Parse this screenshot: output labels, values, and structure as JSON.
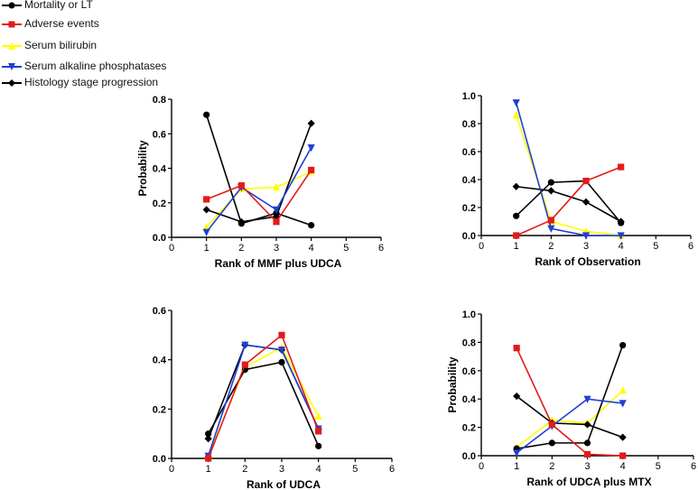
{
  "legend": [
    {
      "label": "Mortality or LT",
      "color": "#000000",
      "marker": "circle"
    },
    {
      "label": "Adverse events",
      "color": "#e31a1c",
      "marker": "square"
    },
    {
      "label": "Serum bilirubin",
      "color": "#ffff00",
      "marker": "triangle-up"
    },
    {
      "label": "Serum alkaline phosphatases",
      "color": "#1f3fd6",
      "marker": "triangle-down"
    },
    {
      "label": "Histology stage progression",
      "color": "#000000",
      "marker": "diamond"
    }
  ],
  "chart_data": [
    {
      "type": "line",
      "xlabel": "Rank of MMF plus UDCA",
      "ylabel": "Probability",
      "xlim": [
        0,
        6
      ],
      "ylim": [
        0,
        0.8
      ],
      "xticks": [
        0,
        1,
        2,
        3,
        4,
        5,
        6
      ],
      "yticks": [
        0.0,
        0.2,
        0.4,
        0.6,
        0.8
      ],
      "ytick_labels": [
        "0.0",
        "0.2",
        "0.4",
        "0.6",
        "0.8"
      ],
      "x": [
        1,
        2,
        3,
        4
      ],
      "series": [
        {
          "name": "Mortality or LT",
          "values": [
            0.71,
            0.08,
            0.14,
            0.07
          ]
        },
        {
          "name": "Adverse events",
          "values": [
            0.22,
            0.3,
            0.09,
            0.39
          ]
        },
        {
          "name": "Serum bilirubin",
          "values": [
            0.06,
            0.28,
            0.29,
            0.38
          ]
        },
        {
          "name": "Serum alkaline phosphatases",
          "values": [
            0.03,
            0.29,
            0.16,
            0.52
          ]
        },
        {
          "name": "Histology stage progression",
          "values": [
            0.16,
            0.09,
            0.12,
            0.66
          ]
        }
      ]
    },
    {
      "type": "line",
      "xlabel": "Rank of Observation",
      "ylabel": "",
      "xlim": [
        0,
        6
      ],
      "ylim": [
        0,
        1.0
      ],
      "xticks": [
        0,
        1,
        2,
        3,
        4,
        5,
        6
      ],
      "yticks": [
        0.0,
        0.2,
        0.4,
        0.6,
        0.8,
        1.0
      ],
      "ytick_labels": [
        "0.0",
        "0.2",
        "0.4",
        "0.6",
        "0.8",
        "1.0"
      ],
      "x": [
        1,
        2,
        3,
        4
      ],
      "series": [
        {
          "name": "Mortality or LT",
          "values": [
            0.14,
            0.38,
            0.39,
            0.09
          ]
        },
        {
          "name": "Adverse events",
          "values": [
            0.0,
            0.11,
            0.39,
            0.49
          ]
        },
        {
          "name": "Serum bilirubin",
          "values": [
            0.86,
            0.1,
            0.03,
            0.0
          ]
        },
        {
          "name": "Serum alkaline phosphatases",
          "values": [
            0.95,
            0.05,
            0.0,
            0.0
          ]
        },
        {
          "name": "Histology stage progression",
          "values": [
            0.35,
            0.32,
            0.24,
            0.1
          ]
        }
      ]
    },
    {
      "type": "line",
      "xlabel": "Rank of UDCA",
      "ylabel": "",
      "xlim": [
        0,
        6
      ],
      "ylim": [
        0,
        0.6
      ],
      "xticks": [
        0,
        1,
        2,
        3,
        4,
        5,
        6
      ],
      "yticks": [
        0.0,
        0.2,
        0.4,
        0.6
      ],
      "ytick_labels": [
        "0.0",
        "0.2",
        "0.4",
        "0.6"
      ],
      "x": [
        1,
        2,
        3,
        4
      ],
      "series": [
        {
          "name": "Mortality or LT",
          "values": [
            0.1,
            0.36,
            0.39,
            0.05
          ]
        },
        {
          "name": "Adverse events",
          "values": [
            0.0,
            0.38,
            0.5,
            0.11
          ]
        },
        {
          "name": "Serum bilirubin",
          "values": [
            0.01,
            0.37,
            0.45,
            0.17
          ]
        },
        {
          "name": "Serum alkaline phosphatases",
          "values": [
            0.01,
            0.46,
            0.44,
            0.12
          ]
        },
        {
          "name": "Histology stage progression",
          "values": [
            0.08,
            0.46,
            0.44,
            0.12
          ]
        }
      ]
    },
    {
      "type": "line",
      "xlabel": "Rank of UDCA plus MTX",
      "ylabel": "Probability",
      "xlim": [
        0,
        6
      ],
      "ylim": [
        0,
        1.0
      ],
      "xticks": [
        0,
        1,
        2,
        3,
        4,
        5,
        6
      ],
      "yticks": [
        0.0,
        0.2,
        0.4,
        0.6,
        0.8,
        1.0
      ],
      "ytick_labels": [
        "0.0",
        "0.2",
        "0.4",
        "0.6",
        "0.8",
        "1.0"
      ],
      "x": [
        1,
        2,
        3,
        4
      ],
      "series": [
        {
          "name": "Mortality or LT",
          "values": [
            0.05,
            0.09,
            0.09,
            0.78
          ]
        },
        {
          "name": "Adverse events",
          "values": [
            0.76,
            0.22,
            0.01,
            0.0
          ]
        },
        {
          "name": "Serum bilirubin",
          "values": [
            0.06,
            0.25,
            0.23,
            0.46
          ]
        },
        {
          "name": "Serum alkaline phosphatases",
          "values": [
            0.02,
            0.21,
            0.4,
            0.37
          ]
        },
        {
          "name": "Histology stage progression",
          "values": [
            0.42,
            0.23,
            0.22,
            0.13
          ]
        }
      ]
    }
  ]
}
